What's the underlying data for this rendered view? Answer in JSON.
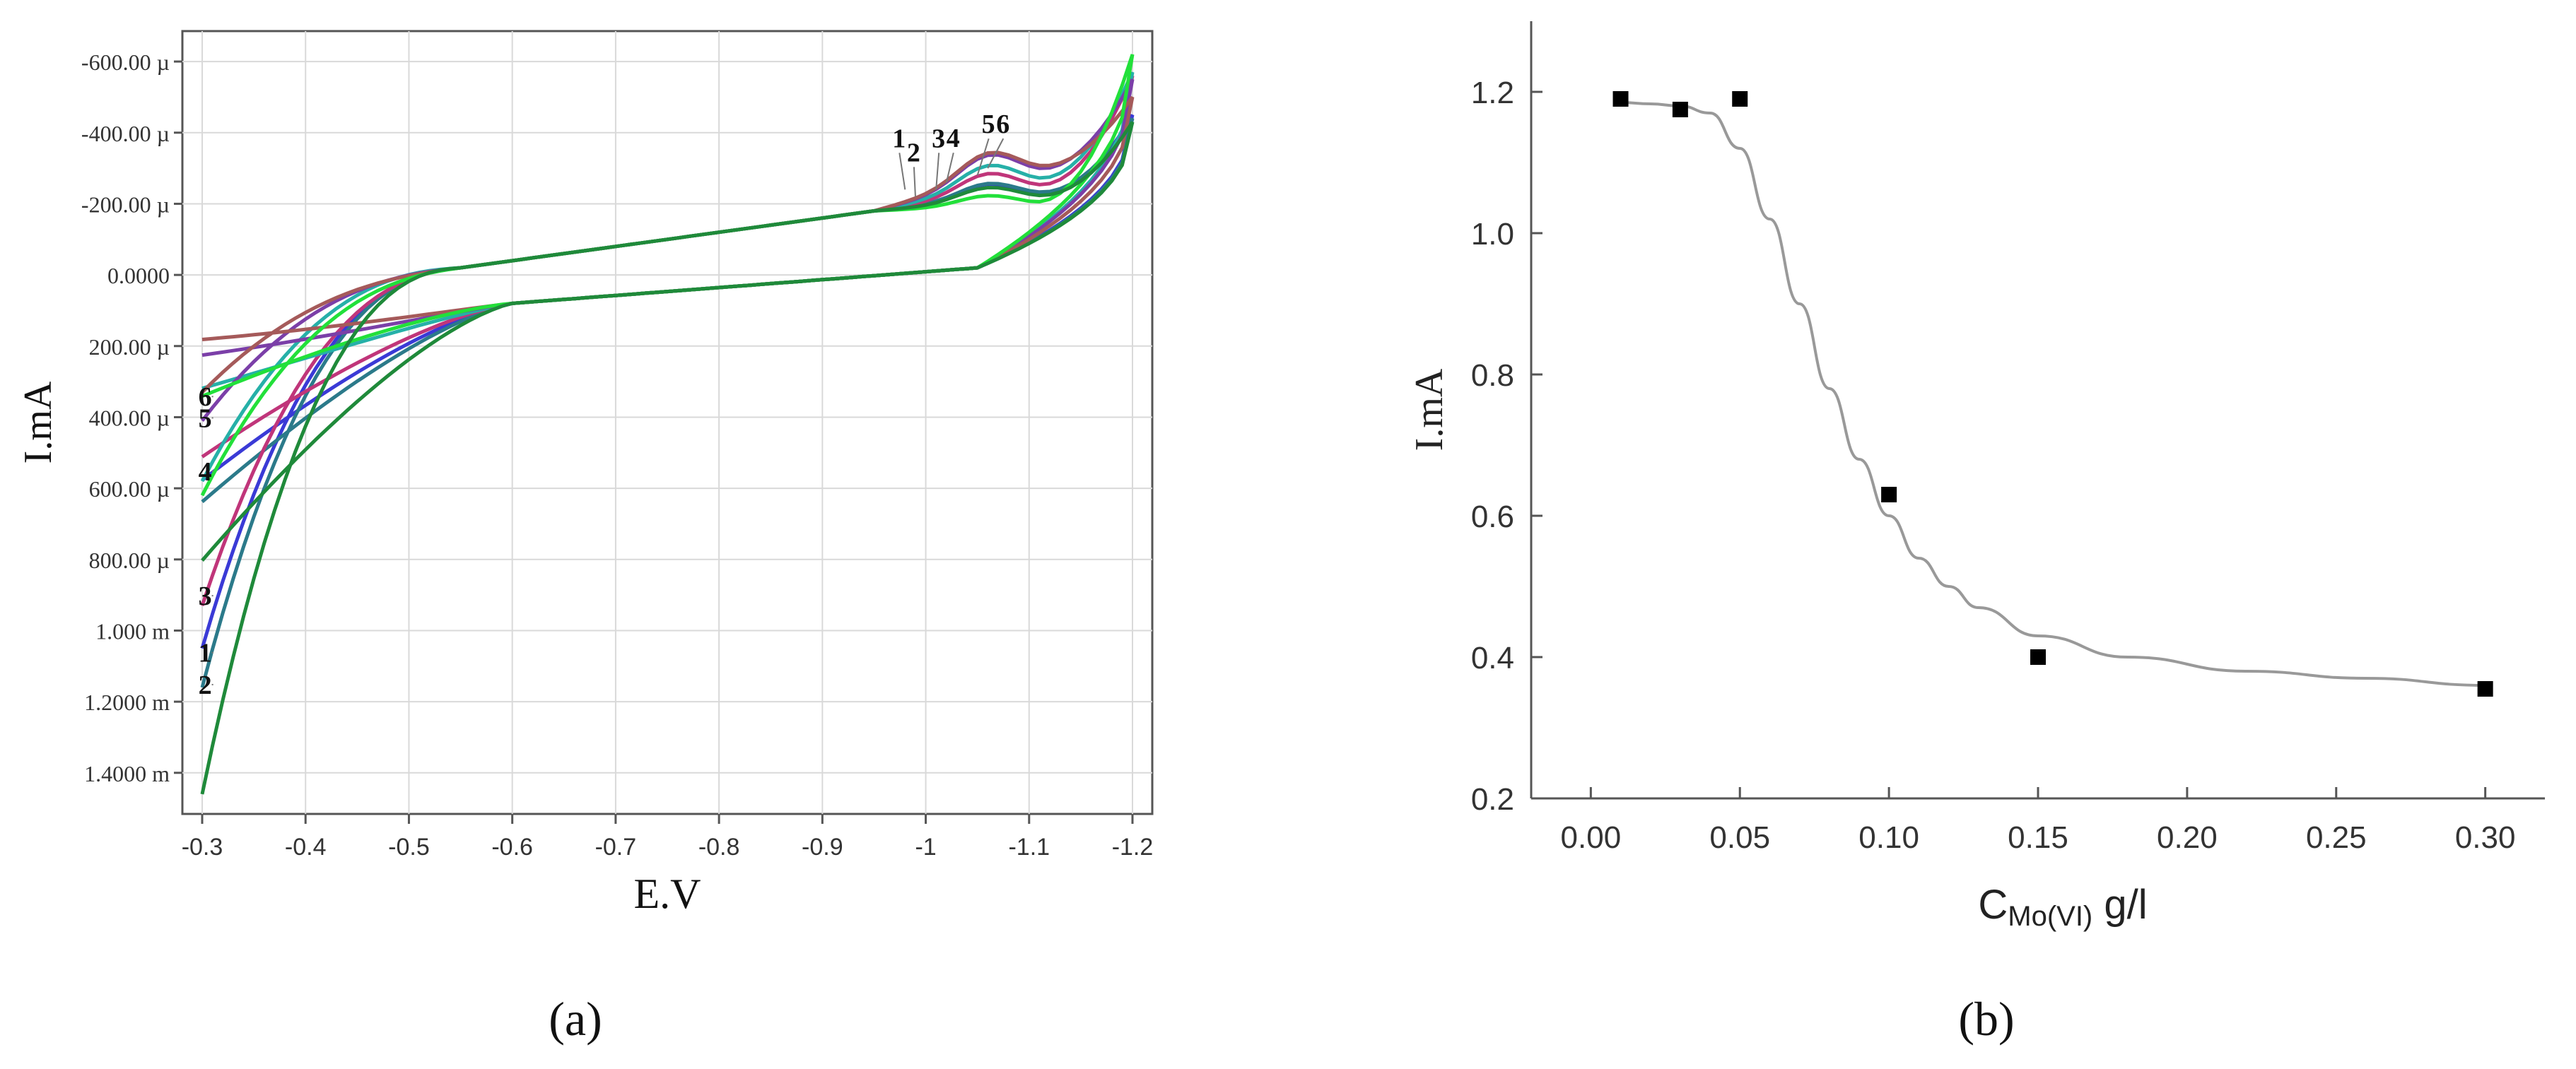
{
  "panel_labels": {
    "a": "(a)",
    "b": "(b)"
  },
  "chart_data": [
    {
      "type": "line",
      "panel": "a",
      "xlabel": "E.V",
      "ylabel": "I.mA",
      "x_ticks": [
        "-0.3",
        "-0.4",
        "-0.5",
        "-0.6",
        "-0.7",
        "-0.8",
        "-0.9",
        "-1",
        "-1.1",
        "-1.2"
      ],
      "y_ticks": [
        "-600.00 µ",
        "-400.00 µ",
        "-200.00 µ",
        "0.0000",
        "200.00 µ",
        "400.00 µ",
        "600.00 µ",
        "800.00 µ",
        "1.000 m",
        "1.2000 m",
        "1.4000 m"
      ],
      "xlim": [
        -0.3,
        -1.2
      ],
      "ylim": [
        -0.63,
        1.46
      ],
      "y_inverted": true,
      "grid": true,
      "series": [
        {
          "name": "1",
          "color": "#3a3ad6",
          "start_i": 1.05,
          "fwd_shift": 0.04,
          "peak": 0.22,
          "bump": 0.05,
          "end_i": -0.45,
          "ret_end": 0.12
        },
        {
          "name": "2",
          "color": "#2b7a8a",
          "start_i": 1.16,
          "fwd_shift": 0.03,
          "peak": 0.23,
          "bump": 0.045,
          "end_i": -0.44,
          "ret_end": 0.14
        },
        {
          "name": "3",
          "color": "#c0357a",
          "start_i": 0.93,
          "fwd_shift": 0.06,
          "peak": 0.25,
          "bump": 0.06,
          "end_i": -0.56,
          "ret_end": 0.1
        },
        {
          "name": "4",
          "color": "#26b0a8",
          "start_i": 0.58,
          "fwd_shift": 0.02,
          "peak": 0.27,
          "bump": 0.07,
          "end_i": -0.57,
          "ret_end": 0.13
        },
        {
          "name": "5",
          "color": "#7b3fa8",
          "start_i": 0.41,
          "fwd_shift": 0.05,
          "peak": 0.3,
          "bump": 0.08,
          "end_i": -0.55,
          "ret_end": 0.11
        },
        {
          "name": "6",
          "color": "#a55a5a",
          "start_i": 0.33,
          "fwd_shift": 0.07,
          "peak": 0.31,
          "bump": 0.08,
          "end_i": -0.5,
          "ret_end": 0.09
        },
        {
          "name": "",
          "color": "#22e03a",
          "start_i": 0.62,
          "fwd_shift": 0.08,
          "peak": 0.2,
          "bump": 0.03,
          "end_i": -0.62,
          "ret_end": 0.06
        },
        {
          "name": "",
          "color": "#1f8a3a",
          "start_i": 1.46,
          "fwd_shift": 0.02,
          "peak": 0.22,
          "bump": 0.04,
          "end_i": -0.43,
          "ret_end": 0.15
        }
      ],
      "annotations": [
        {
          "label": "1",
          "x": -0.98,
          "y": -0.24
        },
        {
          "label": "2",
          "x": -0.99,
          "y": -0.22
        },
        {
          "label": "3",
          "x": -1.01,
          "y": -0.24
        },
        {
          "label": "4",
          "x": -1.02,
          "y": -0.26
        },
        {
          "label": "5",
          "x": -1.05,
          "y": -0.28
        },
        {
          "label": "6",
          "x": -1.06,
          "y": -0.3
        },
        {
          "label": "6",
          "x": -0.31,
          "y": 0.34
        },
        {
          "label": "5",
          "x": -0.31,
          "y": 0.4
        },
        {
          "label": "4",
          "x": -0.31,
          "y": 0.55
        },
        {
          "label": "3",
          "x": -0.31,
          "y": 0.9
        },
        {
          "label": "1",
          "x": -0.31,
          "y": 1.06
        },
        {
          "label": "2",
          "x": -0.31,
          "y": 1.15
        }
      ]
    },
    {
      "type": "scatter",
      "panel": "b",
      "xlabel": "C",
      "xlabel_sub": "Mo(VI)",
      "xlabel_unit": " g/l",
      "ylabel": "I.mA",
      "x_ticks": [
        "0.00",
        "0.05",
        "0.10",
        "0.15",
        "0.20",
        "0.25",
        "0.30"
      ],
      "y_ticks": [
        "0.2",
        "0.4",
        "0.6",
        "0.8",
        "1.0",
        "1.2"
      ],
      "xlim": [
        -0.02,
        0.32
      ],
      "ylim": [
        0.2,
        1.3
      ],
      "grid": false,
      "points": [
        {
          "x": 0.01,
          "y": 1.19
        },
        {
          "x": 0.03,
          "y": 1.175
        },
        {
          "x": 0.05,
          "y": 1.19
        },
        {
          "x": 0.1,
          "y": 0.63
        },
        {
          "x": 0.15,
          "y": 0.4
        },
        {
          "x": 0.3,
          "y": 0.355
        }
      ],
      "fit_curve": [
        [
          0.01,
          1.185
        ],
        [
          0.02,
          1.183
        ],
        [
          0.03,
          1.18
        ],
        [
          0.04,
          1.17
        ],
        [
          0.05,
          1.12
        ],
        [
          0.06,
          1.02
        ],
        [
          0.07,
          0.9
        ],
        [
          0.08,
          0.78
        ],
        [
          0.09,
          0.68
        ],
        [
          0.1,
          0.6
        ],
        [
          0.11,
          0.54
        ],
        [
          0.12,
          0.5
        ],
        [
          0.13,
          0.47
        ],
        [
          0.15,
          0.43
        ],
        [
          0.18,
          0.4
        ],
        [
          0.22,
          0.38
        ],
        [
          0.26,
          0.37
        ],
        [
          0.3,
          0.36
        ]
      ]
    }
  ]
}
